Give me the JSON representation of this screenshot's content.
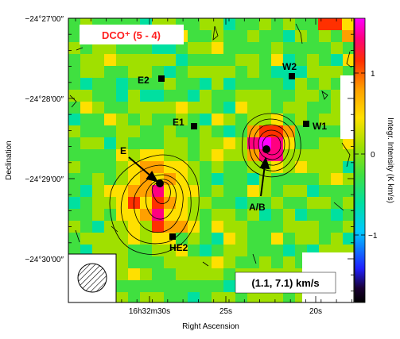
{
  "chart_data": {
    "type": "heatmap",
    "title": "DCO⁺ (5 - 4)",
    "velocity_range_label": "(1.1, 7.1) km/s",
    "xlabel": "Right Ascension",
    "ylabel": "Declination",
    "colorbar_label": "Integr. Intensity (K km/s)",
    "x_ticks": [
      "16h32m30s",
      "25s",
      "20s"
    ],
    "y_ticks": [
      "−24°27′00″",
      "−24°28′00″",
      "−24°29′00″",
      "−24°30′00″"
    ],
    "colorbar_ticks": [
      "1",
      "0",
      "−1"
    ],
    "colorbar_range": [
      -1.8,
      1.8
    ],
    "colormap": [
      "#1a0033",
      "#2020ff",
      "#00c8ff",
      "#00e0a0",
      "#40e040",
      "#a0e000",
      "#ffe000",
      "#ffa000",
      "#ff3000",
      "#ff0080",
      "#ff00ff"
    ],
    "sources": [
      {
        "name": "E2",
        "marker": "square"
      },
      {
        "name": "E1",
        "marker": "square"
      },
      {
        "name": "W2",
        "marker": "square"
      },
      {
        "name": "W1",
        "marker": "square"
      },
      {
        "name": "HE2",
        "marker": "square"
      },
      {
        "name": "E",
        "marker": "circle"
      },
      {
        "name": "A/B",
        "marker": "circle"
      }
    ],
    "beam": "hatched-ellipse"
  }
}
